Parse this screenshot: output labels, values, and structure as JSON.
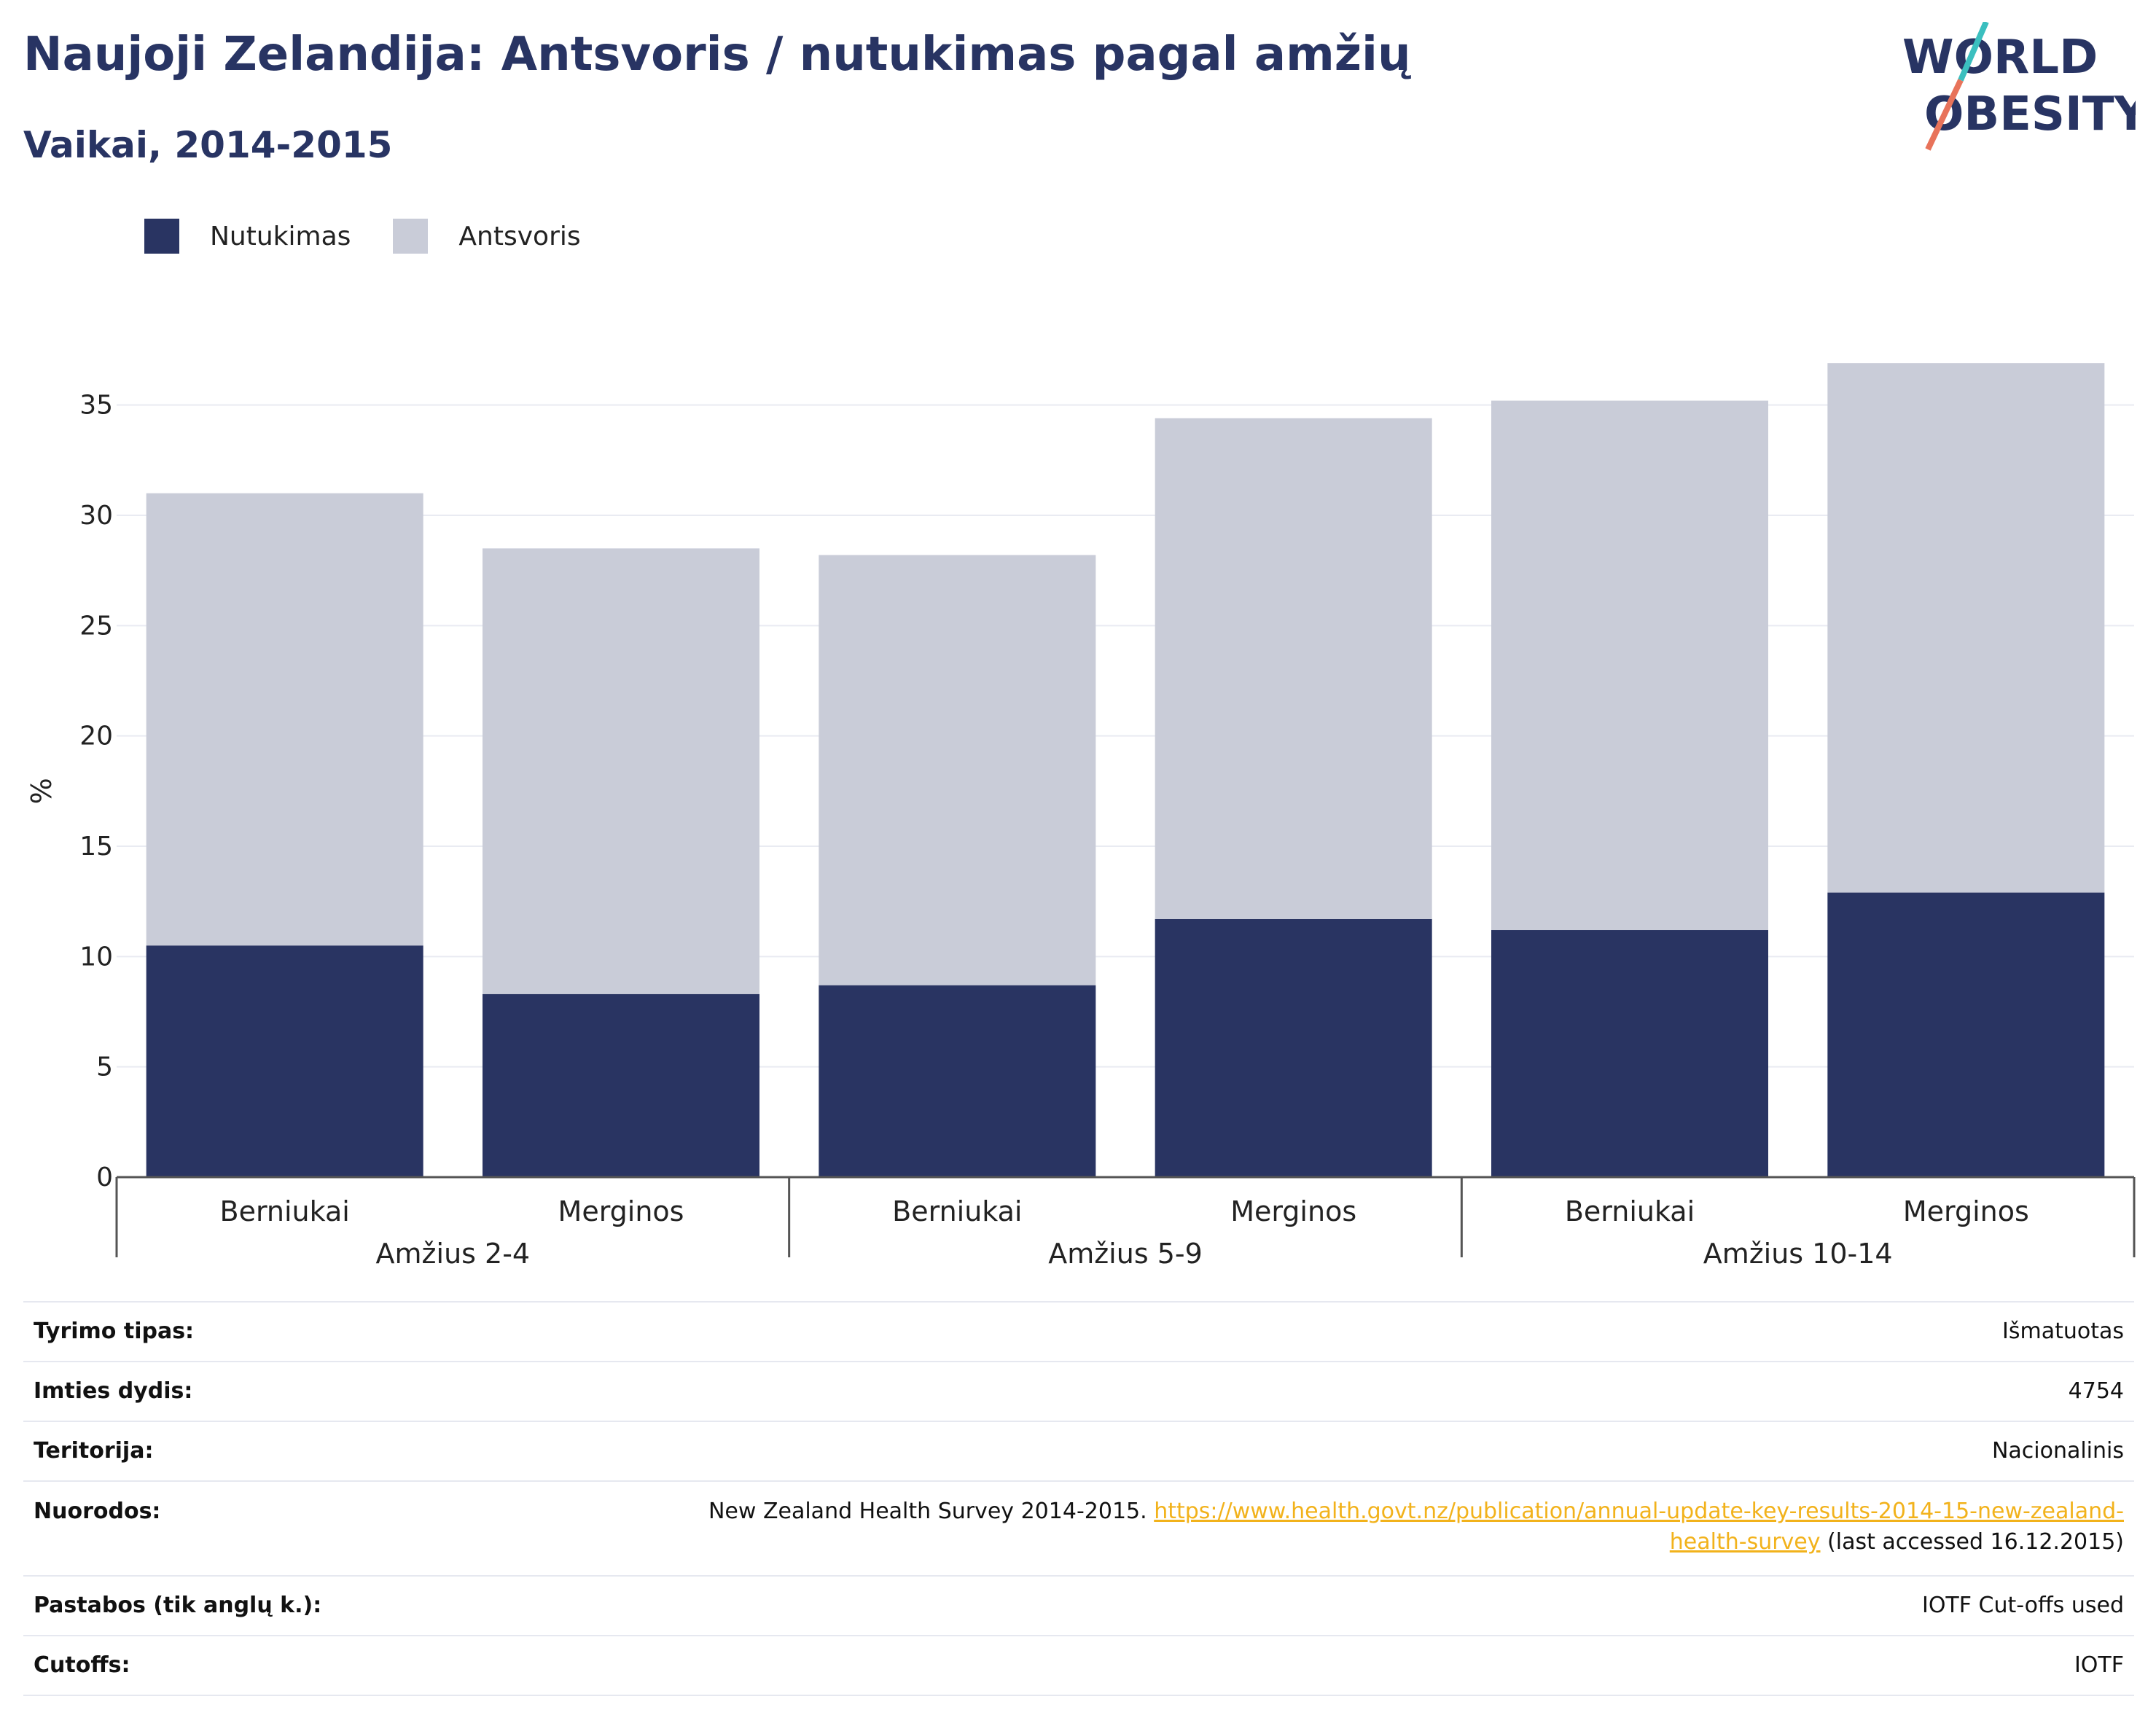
{
  "title": "Naujoji Zelandija: Antsvoris / nutukimas pagal amžių",
  "subtitle": "Vaikai, 2014-2015",
  "logo": {
    "line1": "WORLD",
    "line2": "OBESITY",
    "colors": [
      "#283463",
      "#3bbfbf",
      "#e8735a"
    ]
  },
  "colors": {
    "obesity": "#293462",
    "overweight": "#c9ccd8",
    "title": "#283463",
    "link": "#f2b21b"
  },
  "legend": [
    {
      "label": "Nutukimas",
      "color": "#293462"
    },
    {
      "label": "Antsvoris",
      "color": "#c9ccd8"
    }
  ],
  "chart_data": {
    "type": "bar",
    "stacked": true,
    "ylabel": "%",
    "ylim": [
      0,
      37.5
    ],
    "yticks": [
      0,
      5,
      10,
      15,
      20,
      25,
      30,
      35
    ],
    "grid": true,
    "legend_position": "top-left",
    "groups": [
      {
        "label": "Amžius 2-4",
        "categories": [
          "Berniukai",
          "Merginos"
        ]
      },
      {
        "label": "Amžius 5-9",
        "categories": [
          "Berniukai",
          "Merginos"
        ]
      },
      {
        "label": "Amžius 10-14",
        "categories": [
          "Berniukai",
          "Merginos"
        ]
      }
    ],
    "categories": [
      "Berniukai",
      "Merginos",
      "Berniukai",
      "Merginos",
      "Berniukai",
      "Merginos"
    ],
    "series": [
      {
        "name": "Nutukimas",
        "values": [
          10.5,
          8.3,
          8.7,
          11.7,
          11.2,
          12.9
        ]
      },
      {
        "name": "Antsvoris",
        "values": [
          20.5,
          20.2,
          19.5,
          22.7,
          24.0,
          24.0
        ]
      }
    ]
  },
  "info": [
    {
      "key": "Tyrimo tipas:",
      "value": "Išmatuotas"
    },
    {
      "key": "Imties dydis:",
      "value": "4754"
    },
    {
      "key": "Teritorija:",
      "value": "Nacionalinis"
    },
    {
      "key": "Nuorodos:",
      "value_prefix": "New Zealand Health Survey 2014-2015. ",
      "link_part1": "https://www.health.govt.nz/publication/annual-update-key-results-2014-15-new-zealand-",
      "link_part2": "health-survey",
      "value_suffix": " (last accessed 16.12.2015)"
    },
    {
      "key": "Pastabos (tik anglų k.):",
      "value": "IOTF Cut-offs used"
    },
    {
      "key": "Cutoffs:",
      "value": "IOTF"
    }
  ]
}
